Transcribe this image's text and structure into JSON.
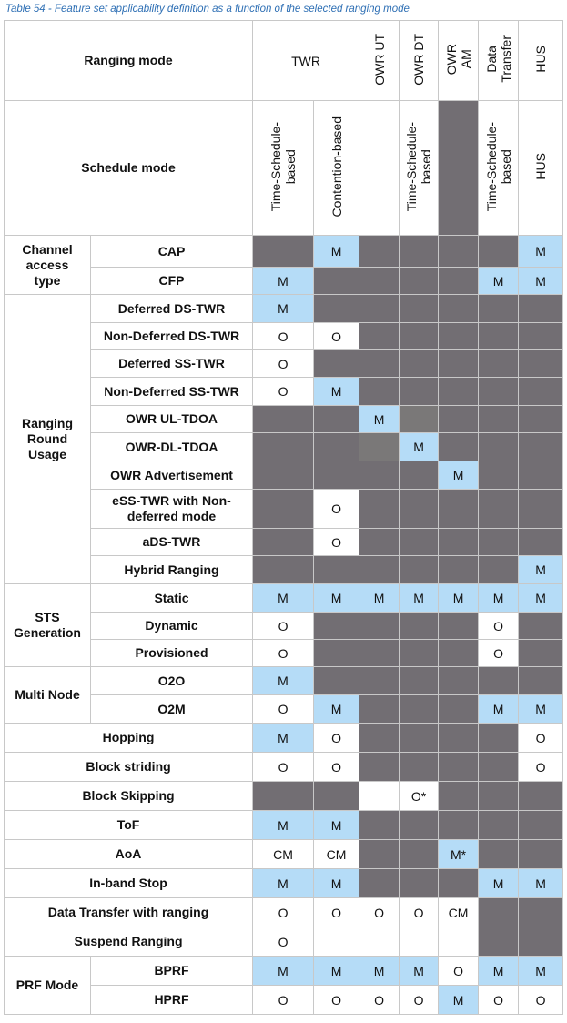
{
  "caption": "Table 54 - Feature set applicability definition as a function of the selected ranging mode",
  "header": {
    "ranging_mode_label": "Ranging mode",
    "schedule_mode_label": "Schedule mode",
    "twr": "TWR",
    "owr_ut": "OWR UT",
    "owr_dt": "OWR DT",
    "owr_am": "OWR\nAM",
    "data_transfer": "Data\nTransfer",
    "hus": "HUS",
    "sched_time1": "Time-Schedule-\nbased",
    "sched_contention": "Contention-based",
    "sched_time2": "Time-Schedule-\nbased",
    "sched_time3": "Time-Schedule-\nbased",
    "sched_hus": "HUS"
  },
  "groups": {
    "channel_access": "Channel access\ntype",
    "ranging_round": "Ranging\nRound\nUsage",
    "sts": "STS\nGeneration",
    "multi_node": "Multi Node",
    "prf": "PRF Mode"
  },
  "rows": [
    {
      "label": "CAP",
      "cells": [
        {
          "t": "",
          "c": "D"
        },
        {
          "t": "M",
          "c": "M"
        },
        {
          "t": "",
          "c": "D"
        },
        {
          "t": "",
          "c": "D"
        },
        {
          "t": "",
          "c": "D"
        },
        {
          "t": "",
          "c": "D"
        },
        {
          "t": "M",
          "c": "M"
        }
      ]
    },
    {
      "label": "CFP",
      "cells": [
        {
          "t": "M",
          "c": "M"
        },
        {
          "t": "",
          "c": "D"
        },
        {
          "t": "",
          "c": "D"
        },
        {
          "t": "",
          "c": "D"
        },
        {
          "t": "",
          "c": "D"
        },
        {
          "t": "M",
          "c": "M"
        },
        {
          "t": "M",
          "c": "M"
        }
      ]
    },
    {
      "label": "Deferred DS-TWR",
      "cells": [
        {
          "t": "M",
          "c": "M"
        },
        {
          "t": "",
          "c": "D"
        },
        {
          "t": "",
          "c": "D"
        },
        {
          "t": "",
          "c": "D"
        },
        {
          "t": "",
          "c": "D"
        },
        {
          "t": "",
          "c": "D"
        },
        {
          "t": "",
          "c": "D"
        }
      ]
    },
    {
      "label": "Non-Deferred DS-TWR",
      "cells": [
        {
          "t": "O",
          "c": "O"
        },
        {
          "t": "O",
          "c": "O"
        },
        {
          "t": "",
          "c": "D"
        },
        {
          "t": "",
          "c": "D"
        },
        {
          "t": "",
          "c": "D"
        },
        {
          "t": "",
          "c": "D"
        },
        {
          "t": "",
          "c": "D"
        }
      ]
    },
    {
      "label": "Deferred SS-TWR",
      "cells": [
        {
          "t": "O",
          "c": "O"
        },
        {
          "t": "",
          "c": "D"
        },
        {
          "t": "",
          "c": "D"
        },
        {
          "t": "",
          "c": "D"
        },
        {
          "t": "",
          "c": "D"
        },
        {
          "t": "",
          "c": "D"
        },
        {
          "t": "",
          "c": "D"
        }
      ]
    },
    {
      "label": "Non-Deferred SS-TWR",
      "cells": [
        {
          "t": "O",
          "c": "O"
        },
        {
          "t": "M",
          "c": "M"
        },
        {
          "t": "",
          "c": "D"
        },
        {
          "t": "",
          "c": "D"
        },
        {
          "t": "",
          "c": "D"
        },
        {
          "t": "",
          "c": "D"
        },
        {
          "t": "",
          "c": "D"
        }
      ]
    },
    {
      "label": "OWR UL-TDOA",
      "cells": [
        {
          "t": "",
          "c": "D"
        },
        {
          "t": "",
          "c": "D"
        },
        {
          "t": "M",
          "c": "M"
        },
        {
          "t": "",
          "c": "L"
        },
        {
          "t": "",
          "c": "D"
        },
        {
          "t": "",
          "c": "D"
        },
        {
          "t": "",
          "c": "D"
        }
      ]
    },
    {
      "label": "OWR-DL-TDOA",
      "cells": [
        {
          "t": "",
          "c": "D"
        },
        {
          "t": "",
          "c": "D"
        },
        {
          "t": "",
          "c": "L"
        },
        {
          "t": "M",
          "c": "M"
        },
        {
          "t": "",
          "c": "D"
        },
        {
          "t": "",
          "c": "D"
        },
        {
          "t": "",
          "c": "D"
        }
      ]
    },
    {
      "label": "OWR Advertisement",
      "cells": [
        {
          "t": "",
          "c": "D"
        },
        {
          "t": "",
          "c": "D"
        },
        {
          "t": "",
          "c": "D"
        },
        {
          "t": "",
          "c": "D"
        },
        {
          "t": "M",
          "c": "M"
        },
        {
          "t": "",
          "c": "D"
        },
        {
          "t": "",
          "c": "D"
        }
      ]
    },
    {
      "label": "eSS-TWR with Non-\ndeferred mode",
      "cells": [
        {
          "t": "",
          "c": "D"
        },
        {
          "t": "O",
          "c": "O"
        },
        {
          "t": "",
          "c": "D"
        },
        {
          "t": "",
          "c": "D"
        },
        {
          "t": "",
          "c": "D"
        },
        {
          "t": "",
          "c": "D"
        },
        {
          "t": "",
          "c": "D"
        }
      ]
    },
    {
      "label": "aDS-TWR",
      "cells": [
        {
          "t": "",
          "c": "D"
        },
        {
          "t": "O",
          "c": "O"
        },
        {
          "t": "",
          "c": "D"
        },
        {
          "t": "",
          "c": "D"
        },
        {
          "t": "",
          "c": "D"
        },
        {
          "t": "",
          "c": "D"
        },
        {
          "t": "",
          "c": "D"
        }
      ]
    },
    {
      "label": "Hybrid Ranging",
      "cells": [
        {
          "t": "",
          "c": "D"
        },
        {
          "t": "",
          "c": "D"
        },
        {
          "t": "",
          "c": "D"
        },
        {
          "t": "",
          "c": "D"
        },
        {
          "t": "",
          "c": "D"
        },
        {
          "t": "",
          "c": "D"
        },
        {
          "t": "M",
          "c": "M"
        }
      ]
    },
    {
      "label": "Static",
      "cells": [
        {
          "t": "M",
          "c": "M"
        },
        {
          "t": "M",
          "c": "M"
        },
        {
          "t": "M",
          "c": "M"
        },
        {
          "t": "M",
          "c": "M"
        },
        {
          "t": "M",
          "c": "M"
        },
        {
          "t": "M",
          "c": "M"
        },
        {
          "t": "M",
          "c": "M"
        }
      ]
    },
    {
      "label": "Dynamic",
      "cells": [
        {
          "t": "O",
          "c": "O"
        },
        {
          "t": "",
          "c": "D"
        },
        {
          "t": "",
          "c": "D"
        },
        {
          "t": "",
          "c": "D"
        },
        {
          "t": "",
          "c": "D"
        },
        {
          "t": "O",
          "c": "O"
        },
        {
          "t": "",
          "c": "D"
        }
      ]
    },
    {
      "label": "Provisioned",
      "cells": [
        {
          "t": "O",
          "c": "O"
        },
        {
          "t": "",
          "c": "D"
        },
        {
          "t": "",
          "c": "D"
        },
        {
          "t": "",
          "c": "D"
        },
        {
          "t": "",
          "c": "D"
        },
        {
          "t": "O",
          "c": "O"
        },
        {
          "t": "",
          "c": "D"
        }
      ]
    },
    {
      "label": "O2O",
      "cells": [
        {
          "t": "M",
          "c": "M"
        },
        {
          "t": "",
          "c": "D"
        },
        {
          "t": "",
          "c": "D"
        },
        {
          "t": "",
          "c": "D"
        },
        {
          "t": "",
          "c": "D"
        },
        {
          "t": "",
          "c": "D"
        },
        {
          "t": "",
          "c": "D"
        }
      ]
    },
    {
      "label": "O2M",
      "cells": [
        {
          "t": "O",
          "c": "O"
        },
        {
          "t": "M",
          "c": "M"
        },
        {
          "t": "",
          "c": "D"
        },
        {
          "t": "",
          "c": "D"
        },
        {
          "t": "",
          "c": "D"
        },
        {
          "t": "M",
          "c": "M"
        },
        {
          "t": "M",
          "c": "M"
        }
      ]
    },
    {
      "label": "Hopping",
      "cells": [
        {
          "t": "M",
          "c": "M"
        },
        {
          "t": "O",
          "c": "O"
        },
        {
          "t": "",
          "c": "D"
        },
        {
          "t": "",
          "c": "D"
        },
        {
          "t": "",
          "c": "D"
        },
        {
          "t": "",
          "c": "D"
        },
        {
          "t": "O",
          "c": "O"
        }
      ]
    },
    {
      "label": "Block striding",
      "cells": [
        {
          "t": "O",
          "c": "O"
        },
        {
          "t": "O",
          "c": "O"
        },
        {
          "t": "",
          "c": "D"
        },
        {
          "t": "",
          "c": "D"
        },
        {
          "t": "",
          "c": "D"
        },
        {
          "t": "",
          "c": "D"
        },
        {
          "t": "O",
          "c": "O"
        }
      ]
    },
    {
      "label": "Block Skipping",
      "cells": [
        {
          "t": "",
          "c": "D"
        },
        {
          "t": "",
          "c": "D"
        },
        {
          "t": "",
          "c": "W"
        },
        {
          "t": "O*",
          "c": "O"
        },
        {
          "t": "",
          "c": "D"
        },
        {
          "t": "",
          "c": "D"
        },
        {
          "t": "",
          "c": "D"
        }
      ]
    },
    {
      "label": "ToF",
      "cells": [
        {
          "t": "M",
          "c": "M"
        },
        {
          "t": "M",
          "c": "M"
        },
        {
          "t": "",
          "c": "D"
        },
        {
          "t": "",
          "c": "D"
        },
        {
          "t": "",
          "c": "D"
        },
        {
          "t": "",
          "c": "D"
        },
        {
          "t": "",
          "c": "D"
        }
      ]
    },
    {
      "label": "AoA",
      "cells": [
        {
          "t": "CM",
          "c": "CM"
        },
        {
          "t": "CM",
          "c": "CM"
        },
        {
          "t": "",
          "c": "D"
        },
        {
          "t": "",
          "c": "D"
        },
        {
          "t": "M*",
          "c": "M"
        },
        {
          "t": "",
          "c": "D"
        },
        {
          "t": "",
          "c": "D"
        }
      ]
    },
    {
      "label": "In-band Stop",
      "cells": [
        {
          "t": "M",
          "c": "M"
        },
        {
          "t": "M",
          "c": "M"
        },
        {
          "t": "",
          "c": "D"
        },
        {
          "t": "",
          "c": "D"
        },
        {
          "t": "",
          "c": "D"
        },
        {
          "t": "M",
          "c": "M"
        },
        {
          "t": "M",
          "c": "M"
        }
      ]
    },
    {
      "label": "Data Transfer with ranging",
      "cells": [
        {
          "t": "O",
          "c": "O"
        },
        {
          "t": "O",
          "c": "O"
        },
        {
          "t": "O",
          "c": "O"
        },
        {
          "t": "O",
          "c": "O"
        },
        {
          "t": "CM",
          "c": "CM"
        },
        {
          "t": "",
          "c": "D"
        },
        {
          "t": "",
          "c": "D"
        }
      ]
    },
    {
      "label": "Suspend Ranging",
      "cells": [
        {
          "t": "O",
          "c": "O"
        },
        {
          "t": "",
          "c": "W"
        },
        {
          "t": "",
          "c": "W"
        },
        {
          "t": "",
          "c": "W"
        },
        {
          "t": "",
          "c": "W"
        },
        {
          "t": "",
          "c": "D"
        },
        {
          "t": "",
          "c": "D"
        }
      ]
    },
    {
      "label": "BPRF",
      "cells": [
        {
          "t": "M",
          "c": "M"
        },
        {
          "t": "M",
          "c": "M"
        },
        {
          "t": "M",
          "c": "M"
        },
        {
          "t": "M",
          "c": "M"
        },
        {
          "t": "O",
          "c": "O"
        },
        {
          "t": "M",
          "c": "M"
        },
        {
          "t": "M",
          "c": "M"
        }
      ]
    },
    {
      "label": "HPRF",
      "cells": [
        {
          "t": "O",
          "c": "O"
        },
        {
          "t": "O",
          "c": "O"
        },
        {
          "t": "O",
          "c": "O"
        },
        {
          "t": "O",
          "c": "O"
        },
        {
          "t": "M",
          "c": "M"
        },
        {
          "t": "O",
          "c": "O"
        },
        {
          "t": "O",
          "c": "O"
        }
      ]
    }
  ],
  "colors": {
    "mandatory": "#b5dcf7",
    "not_applicable": "#726e73",
    "caption": "#2e6fb4"
  }
}
